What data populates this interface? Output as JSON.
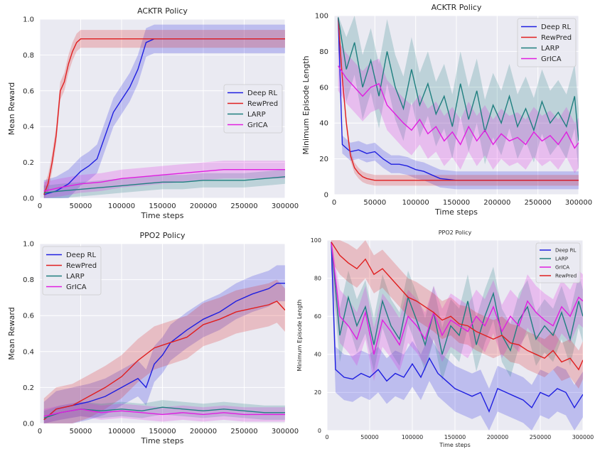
{
  "figure": {
    "panels": 4
  },
  "colors": {
    "deep_rl": "#1f1fe0",
    "rewpred": "#e01f1f",
    "larp": "#1f7f7f",
    "grica": "#e01fe0",
    "bg": "#eaeaf2",
    "grid": "#ffffff"
  },
  "chart_data": [
    {
      "type": "line",
      "title": "ACKTR Policy",
      "xlabel": "Time steps",
      "ylabel": "Mean Reward",
      "xlim": [
        0,
        300000
      ],
      "ylim": [
        0,
        1.0
      ],
      "xticks": [
        0,
        50000,
        100000,
        150000,
        200000,
        250000,
        300000
      ],
      "xtick_labels": [
        "0",
        "50000",
        "100000",
        "150000",
        "200000",
        "250000",
        "300000"
      ],
      "yticks": [
        0,
        0.2,
        0.4,
        0.6,
        0.8,
        1.0
      ],
      "ytick_labels": [
        "0.0",
        "0.2",
        "0.4",
        "0.6",
        "0.8",
        "1.0"
      ],
      "legend_position": "center-right",
      "legend_font": 10,
      "series": [
        {
          "name": "Deep RL",
          "color": "#1f1fe0",
          "band": 0.08,
          "x": [
            5000,
            20000,
            35000,
            50000,
            60000,
            70000,
            80000,
            90000,
            100000,
            110000,
            120000,
            130000,
            140000,
            160000,
            200000,
            250000,
            300000
          ],
          "values": [
            0.02,
            0.04,
            0.08,
            0.15,
            0.18,
            0.22,
            0.35,
            0.48,
            0.55,
            0.62,
            0.72,
            0.87,
            0.89,
            0.89,
            0.89,
            0.89,
            0.89
          ]
        },
        {
          "name": "RewPred",
          "color": "#e01f1f",
          "band": 0.05,
          "x": [
            5000,
            10000,
            15000,
            20000,
            25000,
            30000,
            35000,
            40000,
            45000,
            50000,
            60000,
            80000,
            100000,
            150000,
            200000,
            250000,
            300000
          ],
          "values": [
            0.02,
            0.08,
            0.2,
            0.35,
            0.6,
            0.65,
            0.75,
            0.82,
            0.87,
            0.89,
            0.89,
            0.89,
            0.89,
            0.89,
            0.89,
            0.89,
            0.89
          ]
        },
        {
          "name": "LARP",
          "color": "#1f7f7f",
          "band": 0.04,
          "x": [
            5000,
            25000,
            50000,
            75000,
            100000,
            125000,
            150000,
            175000,
            200000,
            225000,
            250000,
            275000,
            300000
          ],
          "values": [
            0.03,
            0.04,
            0.05,
            0.06,
            0.07,
            0.08,
            0.09,
            0.09,
            0.1,
            0.1,
            0.1,
            0.11,
            0.12
          ]
        },
        {
          "name": "GrICA",
          "color": "#e01fe0",
          "band": 0.05,
          "x": [
            5000,
            25000,
            50000,
            75000,
            100000,
            125000,
            150000,
            175000,
            200000,
            225000,
            250000,
            275000,
            300000
          ],
          "values": [
            0.04,
            0.06,
            0.08,
            0.09,
            0.11,
            0.12,
            0.13,
            0.14,
            0.15,
            0.16,
            0.16,
            0.16,
            0.16
          ]
        }
      ]
    },
    {
      "type": "line",
      "title": "ACKTR Policy",
      "xlabel": "Time steps",
      "ylabel": "Minimum Episode Length",
      "xlim": [
        0,
        300000
      ],
      "ylim": [
        0,
        100
      ],
      "xticks": [
        0,
        50000,
        100000,
        150000,
        200000,
        250000,
        300000
      ],
      "xtick_labels": [
        "0",
        "50000",
        "100000",
        "150000",
        "200000",
        "250000",
        "300000"
      ],
      "yticks": [
        0,
        20,
        40,
        60,
        80,
        100
      ],
      "ytick_labels": [
        "0",
        "20",
        "40",
        "60",
        "80",
        "100"
      ],
      "legend_position": "top-right",
      "legend_font": 10,
      "series": [
        {
          "name": "Deep RL",
          "color": "#1f1fe0",
          "band": 5,
          "x": [
            5000,
            10000,
            20000,
            30000,
            40000,
            50000,
            60000,
            70000,
            80000,
            90000,
            100000,
            110000,
            120000,
            130000,
            150000,
            200000,
            250000,
            300000
          ],
          "values": [
            99,
            28,
            24,
            25,
            23,
            24,
            20,
            17,
            17,
            16,
            14,
            13,
            11,
            9,
            8,
            8,
            8,
            8
          ]
        },
        {
          "name": "RewPred",
          "color": "#e01f1f",
          "band": 3,
          "x": [
            5000,
            10000,
            15000,
            20000,
            25000,
            30000,
            35000,
            40000,
            50000,
            100000,
            150000,
            200000,
            250000,
            300000
          ],
          "values": [
            99,
            65,
            40,
            22,
            15,
            12,
            10,
            9,
            8,
            8,
            8,
            8,
            8,
            8
          ]
        },
        {
          "name": "LARP",
          "color": "#1f7f7f",
          "band": 18,
          "x": [
            5000,
            15000,
            25000,
            35000,
            45000,
            55000,
            65000,
            75000,
            85000,
            95000,
            105000,
            115000,
            125000,
            135000,
            145000,
            155000,
            165000,
            175000,
            185000,
            195000,
            205000,
            215000,
            225000,
            235000,
            245000,
            255000,
            265000,
            275000,
            285000,
            295000,
            300000
          ],
          "values": [
            99,
            70,
            85,
            60,
            75,
            55,
            80,
            60,
            48,
            70,
            50,
            62,
            45,
            55,
            38,
            62,
            42,
            58,
            35,
            50,
            40,
            55,
            38,
            48,
            36,
            52,
            40,
            46,
            38,
            55,
            30
          ]
        },
        {
          "name": "GrICA",
          "color": "#e01fe0",
          "band": 14,
          "x": [
            5000,
            15000,
            25000,
            35000,
            45000,
            55000,
            65000,
            75000,
            85000,
            95000,
            105000,
            115000,
            125000,
            135000,
            145000,
            155000,
            165000,
            175000,
            185000,
            195000,
            205000,
            215000,
            225000,
            235000,
            245000,
            255000,
            265000,
            275000,
            285000,
            295000,
            300000
          ],
          "values": [
            72,
            65,
            60,
            55,
            60,
            62,
            50,
            45,
            40,
            36,
            42,
            34,
            38,
            30,
            35,
            28,
            38,
            30,
            36,
            28,
            34,
            30,
            32,
            28,
            35,
            30,
            33,
            28,
            35,
            26,
            29
          ]
        }
      ]
    },
    {
      "type": "line",
      "title": "PPO2 Policy",
      "xlabel": "Time steps",
      "ylabel": "Mean Reward",
      "xlim": [
        0,
        300000
      ],
      "ylim": [
        0,
        1.0
      ],
      "xticks": [
        0,
        50000,
        100000,
        150000,
        200000,
        250000,
        300000
      ],
      "xtick_labels": [
        "0",
        "50000",
        "100000",
        "150000",
        "200000",
        "250000",
        "300000"
      ],
      "yticks": [
        0,
        0.2,
        0.4,
        0.6,
        0.8,
        1.0
      ],
      "ytick_labels": [
        "0.0",
        "0.2",
        "0.4",
        "0.6",
        "0.8",
        "1.0"
      ],
      "legend_position": "top-left",
      "legend_font": 10,
      "series": [
        {
          "name": "Deep RL",
          "color": "#1f1fe0",
          "band": 0.1,
          "x": [
            5000,
            20000,
            40000,
            60000,
            80000,
            100000,
            120000,
            130000,
            140000,
            150000,
            160000,
            180000,
            200000,
            220000,
            240000,
            260000,
            280000,
            290000,
            300000
          ],
          "values": [
            0.02,
            0.08,
            0.1,
            0.12,
            0.15,
            0.2,
            0.25,
            0.2,
            0.33,
            0.38,
            0.45,
            0.52,
            0.58,
            0.62,
            0.68,
            0.72,
            0.75,
            0.78,
            0.78
          ]
        },
        {
          "name": "RewPred",
          "color": "#e01f1f",
          "band": 0.12,
          "x": [
            5000,
            20000,
            40000,
            60000,
            80000,
            100000,
            120000,
            140000,
            160000,
            180000,
            200000,
            220000,
            240000,
            260000,
            280000,
            290000,
            300000
          ],
          "values": [
            0.02,
            0.08,
            0.1,
            0.15,
            0.2,
            0.26,
            0.35,
            0.42,
            0.45,
            0.48,
            0.55,
            0.58,
            0.62,
            0.64,
            0.66,
            0.68,
            0.63
          ]
        },
        {
          "name": "LARP",
          "color": "#1f7f7f",
          "band": 0.04,
          "x": [
            5000,
            25000,
            50000,
            75000,
            100000,
            125000,
            150000,
            175000,
            200000,
            225000,
            250000,
            275000,
            300000
          ],
          "values": [
            0.03,
            0.06,
            0.08,
            0.07,
            0.08,
            0.07,
            0.09,
            0.08,
            0.07,
            0.08,
            0.07,
            0.06,
            0.06
          ]
        },
        {
          "name": "GrICA",
          "color": "#e01fe0",
          "band": 0.04,
          "x": [
            5000,
            25000,
            50000,
            75000,
            100000,
            125000,
            150000,
            175000,
            200000,
            225000,
            250000,
            275000,
            300000
          ],
          "values": [
            0.04,
            0.06,
            0.08,
            0.06,
            0.07,
            0.06,
            0.05,
            0.06,
            0.05,
            0.06,
            0.05,
            0.05,
            0.05
          ]
        }
      ]
    },
    {
      "type": "line",
      "title": "PPO2 Policy",
      "xlabel": "Time steps",
      "ylabel": "Minimum Episode Length",
      "xlim": [
        0,
        300000
      ],
      "ylim": [
        0,
        100
      ],
      "xticks": [
        0,
        50000,
        100000,
        150000,
        200000,
        250000,
        300000
      ],
      "xtick_labels": [
        "0",
        "50000",
        "100000",
        "150000",
        "200000",
        "250000",
        "300000"
      ],
      "yticks": [
        0,
        20,
        40,
        60,
        80,
        100
      ],
      "ytick_labels": [
        "0",
        "20",
        "40",
        "60",
        "80",
        "100"
      ],
      "legend_position": "top-right",
      "legend_font": 7,
      "series": [
        {
          "name": "Deep RL",
          "color": "#1f1fe0",
          "band": 12,
          "x": [
            5000,
            10000,
            20000,
            30000,
            40000,
            50000,
            60000,
            70000,
            80000,
            90000,
            100000,
            110000,
            120000,
            130000,
            140000,
            150000,
            160000,
            170000,
            180000,
            190000,
            200000,
            210000,
            220000,
            230000,
            240000,
            250000,
            260000,
            270000,
            280000,
            290000,
            300000
          ],
          "values": [
            99,
            32,
            28,
            27,
            30,
            28,
            32,
            26,
            30,
            28,
            35,
            28,
            38,
            30,
            26,
            22,
            20,
            18,
            20,
            10,
            22,
            20,
            18,
            16,
            12,
            20,
            18,
            22,
            20,
            12,
            19
          ]
        },
        {
          "name": "LARP",
          "color": "#1f7f7f",
          "band": 14,
          "x": [
            5000,
            15000,
            25000,
            35000,
            45000,
            55000,
            65000,
            75000,
            85000,
            95000,
            105000,
            115000,
            125000,
            135000,
            145000,
            155000,
            165000,
            175000,
            185000,
            195000,
            205000,
            215000,
            225000,
            235000,
            245000,
            255000,
            265000,
            275000,
            285000,
            295000,
            300000
          ],
          "values": [
            99,
            50,
            70,
            55,
            65,
            45,
            68,
            55,
            48,
            70,
            58,
            45,
            62,
            40,
            55,
            50,
            68,
            45,
            60,
            72,
            50,
            42,
            58,
            65,
            48,
            55,
            50,
            62,
            48,
            68,
            60
          ]
        },
        {
          "name": "GrICA",
          "color": "#e01fe0",
          "band": 14,
          "x": [
            5000,
            15000,
            25000,
            35000,
            45000,
            55000,
            65000,
            75000,
            85000,
            95000,
            105000,
            115000,
            125000,
            135000,
            145000,
            155000,
            165000,
            175000,
            185000,
            195000,
            205000,
            215000,
            225000,
            235000,
            245000,
            255000,
            265000,
            275000,
            285000,
            295000,
            300000
          ],
          "values": [
            99,
            60,
            55,
            48,
            62,
            40,
            58,
            52,
            45,
            60,
            55,
            48,
            62,
            50,
            58,
            55,
            52,
            60,
            55,
            65,
            52,
            60,
            55,
            68,
            62,
            58,
            55,
            65,
            60,
            70,
            68
          ]
        },
        {
          "name": "RewPred",
          "color": "#e01f1f",
          "band": 10,
          "x": [
            5000,
            15000,
            25000,
            35000,
            45000,
            55000,
            65000,
            75000,
            85000,
            95000,
            105000,
            115000,
            125000,
            135000,
            145000,
            155000,
            165000,
            175000,
            185000,
            195000,
            205000,
            215000,
            225000,
            235000,
            245000,
            255000,
            265000,
            275000,
            285000,
            295000,
            300000
          ],
          "values": [
            99,
            92,
            88,
            85,
            90,
            82,
            85,
            80,
            75,
            70,
            68,
            65,
            62,
            58,
            60,
            56,
            55,
            52,
            50,
            48,
            50,
            46,
            45,
            42,
            40,
            38,
            42,
            36,
            38,
            32,
            37
          ]
        }
      ]
    }
  ]
}
